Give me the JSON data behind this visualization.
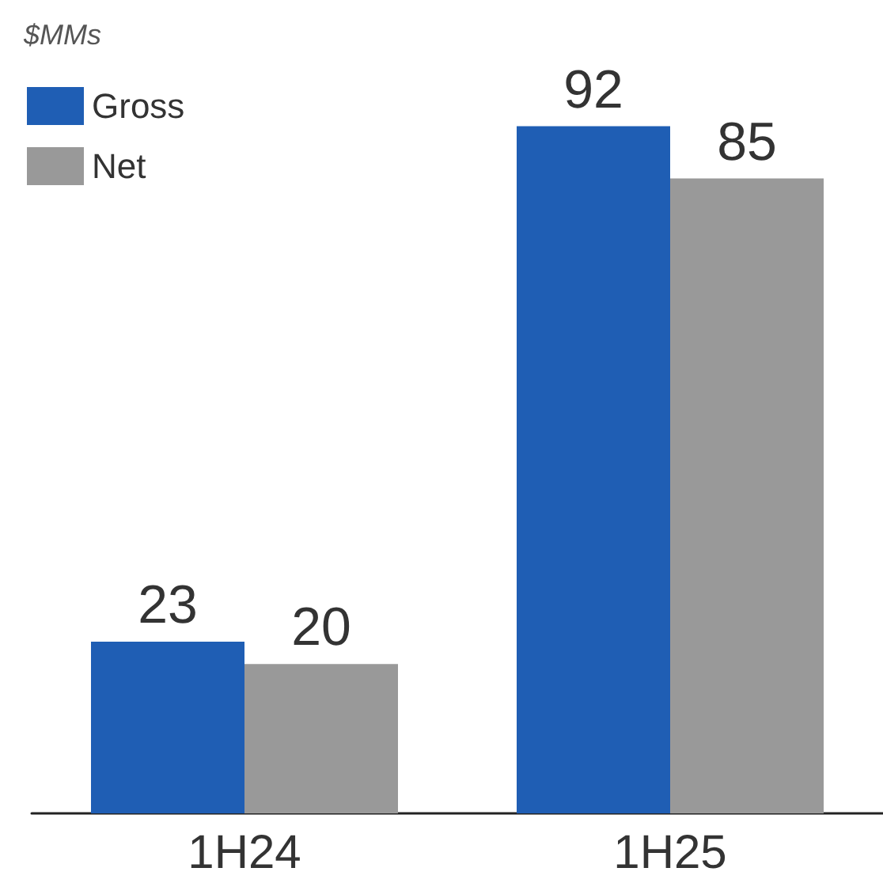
{
  "chart_data": {
    "type": "bar",
    "ylabel": "$MMs",
    "categories": [
      "1H24",
      "1H25"
    ],
    "series": [
      {
        "name": "Gross",
        "color": "#1f5eb4",
        "values": [
          23,
          92
        ]
      },
      {
        "name": "Net",
        "color": "#999999",
        "values": [
          20,
          85
        ]
      }
    ],
    "data_labels": true,
    "legend": "top left"
  }
}
